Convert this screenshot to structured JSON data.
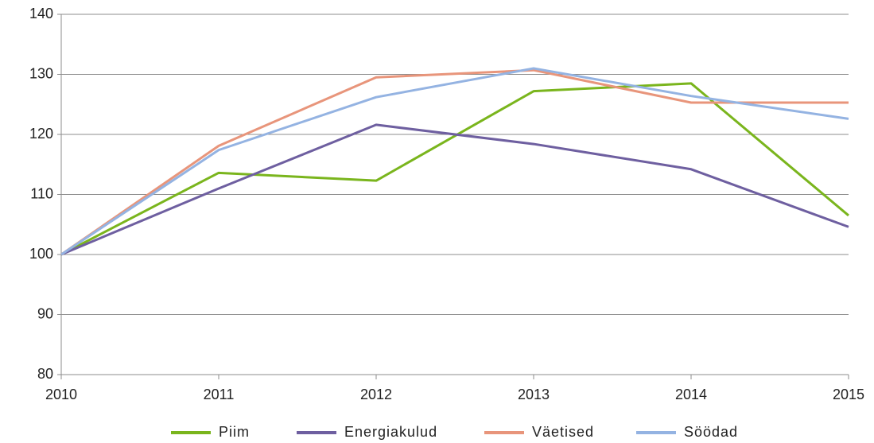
{
  "chart_data": {
    "type": "line",
    "x": [
      2010,
      2011,
      2012,
      2013,
      2014,
      2015
    ],
    "series": [
      {
        "name": "Piim",
        "color": "#7ab51d",
        "values": [
          100,
          113.6,
          112.3,
          127.2,
          128.5,
          106.5
        ]
      },
      {
        "name": "Energiakulud",
        "color": "#6e5fa0",
        "values": [
          100,
          111.0,
          121.6,
          118.4,
          114.2,
          104.6
        ]
      },
      {
        "name": "Väetised",
        "color": "#e8957b",
        "values": [
          100,
          118.1,
          129.5,
          130.7,
          125.3,
          125.3
        ]
      },
      {
        "name": "Söödad",
        "color": "#94b3e2",
        "values": [
          100,
          117.4,
          126.2,
          131.0,
          126.4,
          122.6
        ]
      }
    ],
    "xlim": [
      2010,
      2015
    ],
    "xticks": [
      2010,
      2011,
      2012,
      2013,
      2014,
      2015
    ],
    "ylim": [
      80,
      140
    ],
    "yticks": [
      80,
      90,
      100,
      110,
      120,
      130,
      140
    ],
    "grid": true,
    "legend": "bottom"
  }
}
